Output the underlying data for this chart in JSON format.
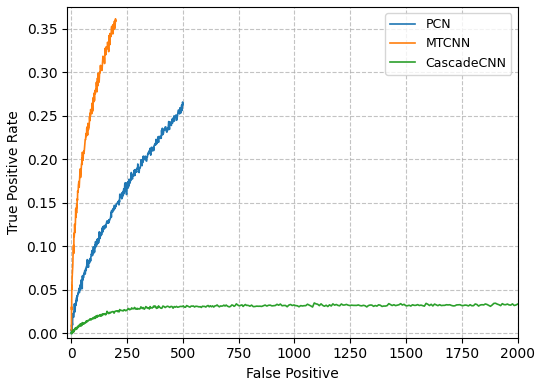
{
  "title": "",
  "xlabel": "False Positive",
  "ylabel": "True Positive Rate",
  "xlim": [
    -20,
    2000
  ],
  "ylim": [
    -0.005,
    0.375
  ],
  "xticks": [
    0,
    250,
    500,
    750,
    1000,
    1250,
    1500,
    1750,
    2000
  ],
  "yticks": [
    0.0,
    0.05,
    0.1,
    0.15,
    0.2,
    0.25,
    0.3,
    0.35
  ],
  "grid": true,
  "legend_labels": [
    "PCN",
    "MTCNN",
    "CascadeCNN"
  ],
  "colors": {
    "PCN": "#1f77b4",
    "MTCNN": "#ff7f0e",
    "CascadeCNN": "#2ca02c"
  },
  "figsize": [
    5.42,
    3.88
  ],
  "dpi": 100
}
